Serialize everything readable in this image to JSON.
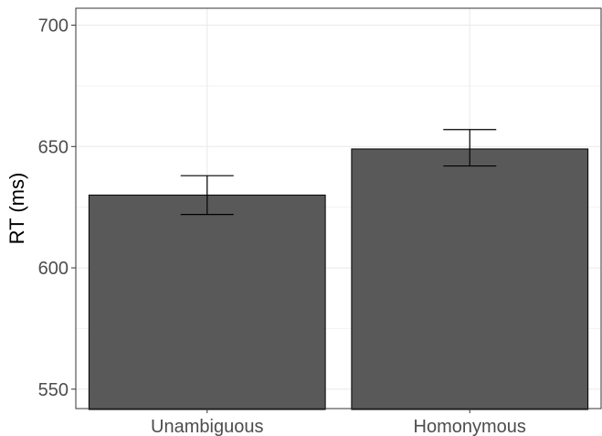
{
  "chart_data": {
    "type": "bar",
    "title": "",
    "xlabel": "",
    "ylabel": "RT (ms)",
    "ylim": [
      542,
      707
    ],
    "yticks": [
      550,
      600,
      650,
      700
    ],
    "grid": true,
    "legend": "none",
    "categories": [
      "Unambiguous",
      "Homonymous"
    ],
    "values": [
      630,
      649
    ],
    "error_low": [
      622,
      642
    ],
    "error_high": [
      638,
      657
    ],
    "bar_color": "#595959",
    "bar_outline": "#000000"
  }
}
